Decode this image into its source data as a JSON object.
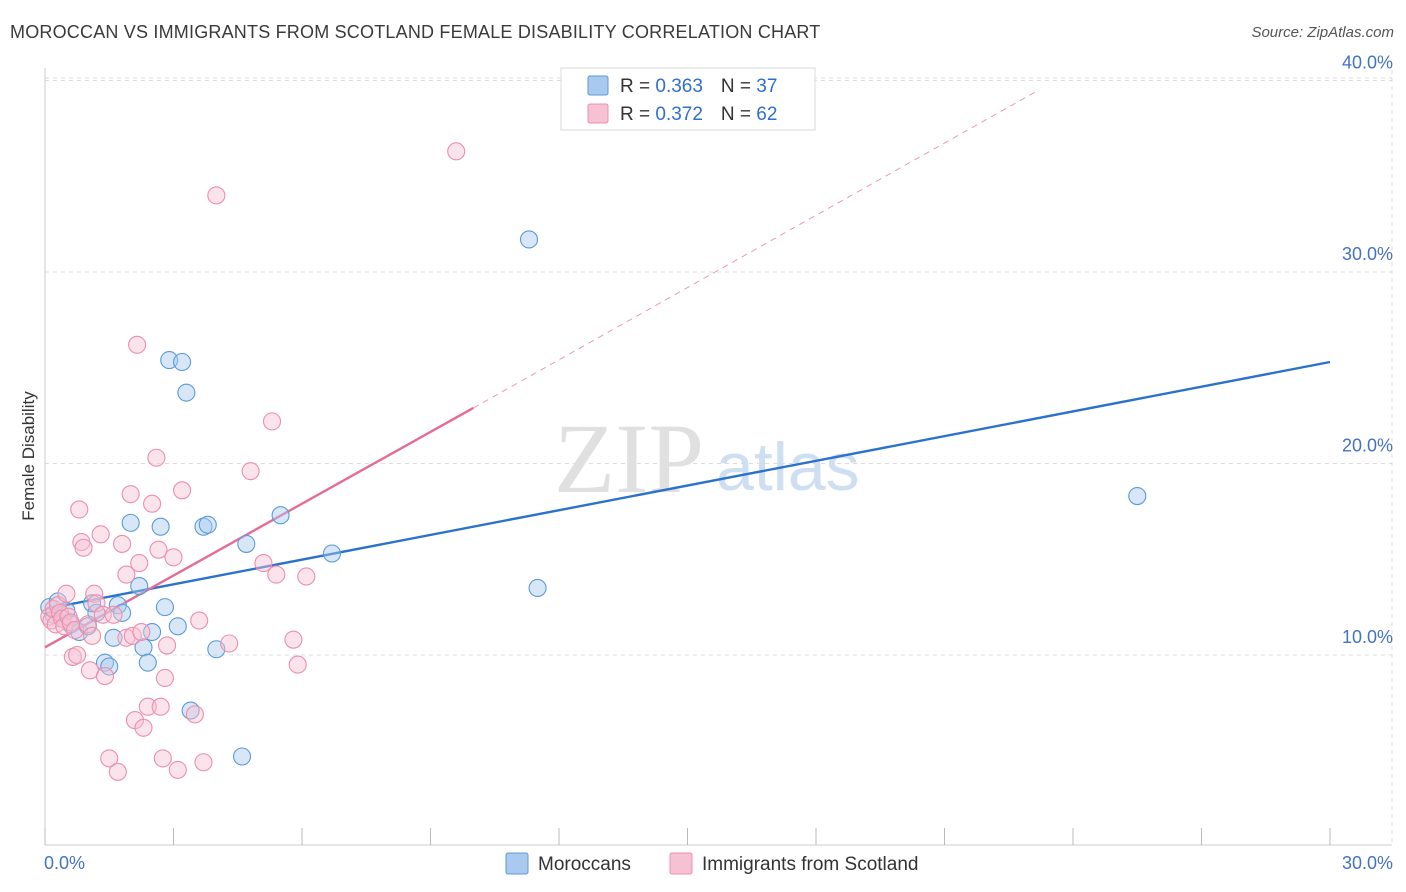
{
  "header": {
    "title": "MOROCCAN VS IMMIGRANTS FROM SCOTLAND FEMALE DISABILITY CORRELATION CHART",
    "source": "Source: ZipAtlas.com"
  },
  "watermark": {
    "zip": "ZIP",
    "atlas": "atlas"
  },
  "colors": {
    "blue": "#5b9bd5",
    "blue_line": "#2b72cc",
    "blue_fill": "#a9c9ef",
    "pink": "#ec8fac",
    "pink_line": "#e46d96",
    "pink_fill": "#f6c1d3",
    "axis_text": "#4472c4",
    "grid": "#dcdcdc"
  },
  "chart_data": {
    "type": "scatter",
    "title": "MOROCCAN VS IMMIGRANTS FROM SCOTLAND FEMALE DISABILITY CORRELATION CHART",
    "xlabel": "",
    "ylabel": "Female Disability",
    "xlim": [
      0,
      30
    ],
    "ylim": [
      0,
      42
    ],
    "x_tick_labels": [
      "0.0%",
      "30.0%"
    ],
    "y_ticks": [
      10,
      20,
      30,
      40
    ],
    "y_tick_labels": [
      "10.0%",
      "20.0%",
      "30.0%",
      "40.0%"
    ],
    "grid": true,
    "legend_position": "top-center",
    "legend": [
      {
        "r_label": "R = ",
        "r_value": "0.363",
        "n_label": "N = ",
        "n_value": "37"
      },
      {
        "r_label": "R = ",
        "r_value": "0.372",
        "n_label": "N = ",
        "n_value": "62"
      }
    ],
    "bottom_legend": [
      "Moroccans",
      "Immigrants from Scotland"
    ],
    "series": [
      {
        "name": "Moroccans",
        "color": "#5b9bd5",
        "points": [
          [
            0.1,
            12.5
          ],
          [
            0.2,
            12.1
          ],
          [
            0.3,
            12.8
          ],
          [
            0.4,
            11.9
          ],
          [
            0.5,
            12.3
          ],
          [
            0.6,
            11.6
          ],
          [
            0.8,
            11.2
          ],
          [
            1.0,
            11.5
          ],
          [
            1.1,
            12.7
          ],
          [
            1.2,
            12.2
          ],
          [
            1.4,
            9.6
          ],
          [
            1.5,
            9.4
          ],
          [
            1.6,
            10.9
          ],
          [
            1.7,
            12.6
          ],
          [
            1.8,
            12.2
          ],
          [
            2.0,
            16.9
          ],
          [
            2.2,
            13.6
          ],
          [
            2.3,
            10.4
          ],
          [
            2.4,
            9.6
          ],
          [
            2.5,
            11.2
          ],
          [
            2.7,
            16.7
          ],
          [
            2.8,
            12.5
          ],
          [
            2.9,
            25.4
          ],
          [
            3.1,
            11.5
          ],
          [
            3.2,
            25.3
          ],
          [
            3.3,
            23.7
          ],
          [
            3.4,
            7.1
          ],
          [
            3.7,
            16.7
          ],
          [
            3.8,
            16.8
          ],
          [
            4.0,
            10.3
          ],
          [
            4.6,
            4.7
          ],
          [
            4.7,
            15.8
          ],
          [
            5.5,
            17.3
          ],
          [
            6.7,
            15.3
          ],
          [
            11.3,
            31.7
          ],
          [
            11.5,
            13.5
          ],
          [
            25.5,
            18.3
          ]
        ]
      },
      {
        "name": "Immigrants from Scotland",
        "color": "#ec8fac",
        "points": [
          [
            0.1,
            12.0
          ],
          [
            0.15,
            11.8
          ],
          [
            0.2,
            12.4
          ],
          [
            0.25,
            11.6
          ],
          [
            0.3,
            12.6
          ],
          [
            0.35,
            12.2
          ],
          [
            0.4,
            11.9
          ],
          [
            0.45,
            11.5
          ],
          [
            0.5,
            13.2
          ],
          [
            0.55,
            12.0
          ],
          [
            0.6,
            11.7
          ],
          [
            0.65,
            9.9
          ],
          [
            0.7,
            11.3
          ],
          [
            0.75,
            10.0
          ],
          [
            0.8,
            17.6
          ],
          [
            0.85,
            15.9
          ],
          [
            0.9,
            15.6
          ],
          [
            1.0,
            11.6
          ],
          [
            1.05,
            9.2
          ],
          [
            1.1,
            11.0
          ],
          [
            1.15,
            13.2
          ],
          [
            1.2,
            12.7
          ],
          [
            1.3,
            16.3
          ],
          [
            1.35,
            12.1
          ],
          [
            1.4,
            8.9
          ],
          [
            1.5,
            4.6
          ],
          [
            1.6,
            12.1
          ],
          [
            1.7,
            3.9
          ],
          [
            1.8,
            15.8
          ],
          [
            1.9,
            14.2
          ],
          [
            1.9,
            10.9
          ],
          [
            2.0,
            18.4
          ],
          [
            2.05,
            11.0
          ],
          [
            2.1,
            6.6
          ],
          [
            2.15,
            26.2
          ],
          [
            2.2,
            14.8
          ],
          [
            2.25,
            11.2
          ],
          [
            2.3,
            6.2
          ],
          [
            2.4,
            7.3
          ],
          [
            2.5,
            17.9
          ],
          [
            2.6,
            20.3
          ],
          [
            2.65,
            15.5
          ],
          [
            2.7,
            7.3
          ],
          [
            2.75,
            4.6
          ],
          [
            2.8,
            8.8
          ],
          [
            2.85,
            10.5
          ],
          [
            3.0,
            15.1
          ],
          [
            3.1,
            4.0
          ],
          [
            3.2,
            18.6
          ],
          [
            3.5,
            6.9
          ],
          [
            3.6,
            11.8
          ],
          [
            3.7,
            4.4
          ],
          [
            4.0,
            34.0
          ],
          [
            4.3,
            10.6
          ],
          [
            4.8,
            19.6
          ],
          [
            5.1,
            14.8
          ],
          [
            5.3,
            22.2
          ],
          [
            5.4,
            14.2
          ],
          [
            5.8,
            10.8
          ],
          [
            5.9,
            9.5
          ],
          [
            6.1,
            14.1
          ],
          [
            9.6,
            36.3
          ]
        ]
      }
    ],
    "trend_lines": [
      {
        "name": "Moroccans",
        "x": [
          0,
          30
        ],
        "y": [
          12.4,
          25.3
        ],
        "style": "solid"
      },
      {
        "name": "Immigrants from Scotland",
        "x": [
          0,
          10
        ],
        "y": [
          10.4,
          22.9
        ],
        "style": "solid"
      },
      {
        "name": "Immigrants from Scotland (extrapolated)",
        "x": [
          10,
          23.2
        ],
        "y": [
          22.9,
          39.5
        ],
        "style": "dashed"
      }
    ]
  }
}
